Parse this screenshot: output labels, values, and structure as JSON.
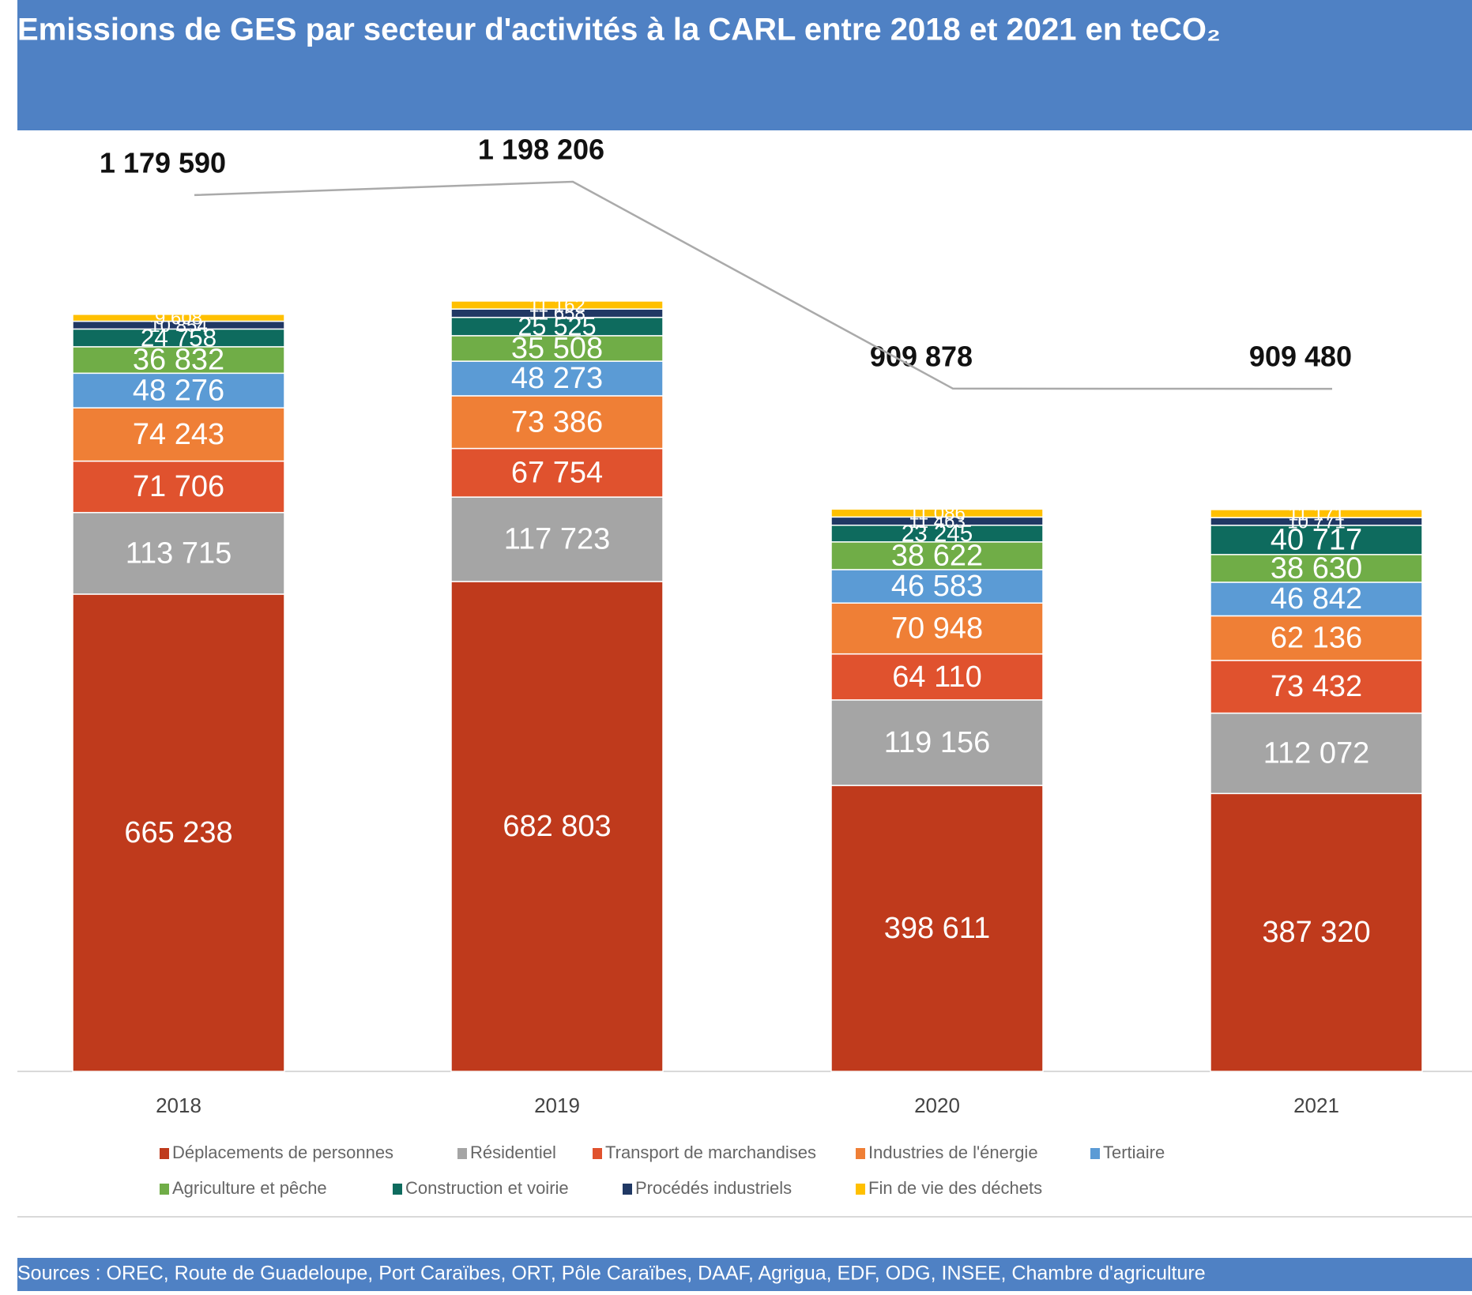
{
  "chart_data": {
    "type": "stacked_bar",
    "title": "Emissions de GES par secteur d'activités à la CARL entre 2018 et 2021 en teCO₂",
    "categories": [
      "2018",
      "2019",
      "2020",
      "2021"
    ],
    "series": [
      {
        "name": "Déplacements de personnes",
        "color": "#bf3a1c",
        "values": [
          665238,
          682803,
          398611,
          387320
        ],
        "value_labels": [
          "665 238",
          "682 803",
          "398 611",
          "387 320"
        ]
      },
      {
        "name": "Résidentiel",
        "color": "#a5a5a5",
        "values": [
          113715,
          117723,
          119156,
          112072
        ],
        "value_labels": [
          "113 715",
          "117 723",
          "119 156",
          "112 072"
        ]
      },
      {
        "name": "Transport de marchandises",
        "color": "#e0522e",
        "values": [
          71706,
          67754,
          64110,
          73432
        ],
        "value_labels": [
          "71 706",
          "67 754",
          "64 110",
          "73 432"
        ]
      },
      {
        "name": "Industries de l'énergie",
        "color": "#ef7f36",
        "values": [
          74243,
          73386,
          70948,
          62136
        ],
        "value_labels": [
          "74 243",
          "73 386",
          "70 948",
          "62 136"
        ]
      },
      {
        "name": "Tertiaire",
        "color": "#5b9bd5",
        "values": [
          48276,
          48273,
          46583,
          46842
        ],
        "value_labels": [
          "48 276",
          "48 273",
          "46 583",
          "46 842"
        ]
      },
      {
        "name": "Agriculture et pêche",
        "color": "#70ad47",
        "values": [
          36832,
          35508,
          38622,
          38630
        ],
        "value_labels": [
          "36 832",
          "35 508",
          "38 622",
          "38 630"
        ]
      },
      {
        "name": "Construction et voirie",
        "color": "#0e6b5e",
        "values": [
          24758,
          25525,
          23245,
          40717
        ],
        "value_labels": [
          "24 758",
          "25 525",
          "23 245",
          "40 717"
        ]
      },
      {
        "name": "Procédés industriels",
        "color": "#203864",
        "values": [
          10854,
          11658,
          11463,
          10771
        ],
        "value_labels": [
          "10 854",
          "11 658",
          "11 463",
          "10 771"
        ]
      },
      {
        "name": "Fin de vie des déchets",
        "color": "#ffc000",
        "values": [
          9608,
          11162,
          11086,
          11171
        ],
        "value_labels": [
          "9 608",
          "11 162",
          "11 086",
          "11 171"
        ]
      }
    ],
    "totals": {
      "values": [
        1179590,
        1198206,
        909878,
        909480
      ],
      "value_labels": [
        "1 179 590",
        "1 198 206",
        "909 878",
        "909 480"
      ]
    },
    "source": "Sources : OREC, Route de Guadeloupe, Port Caraïbes, ORT, Pôle Caraïbes, DAAF, Agrigua, EDF, ODG, INSEE, Chambre d'agriculture"
  }
}
